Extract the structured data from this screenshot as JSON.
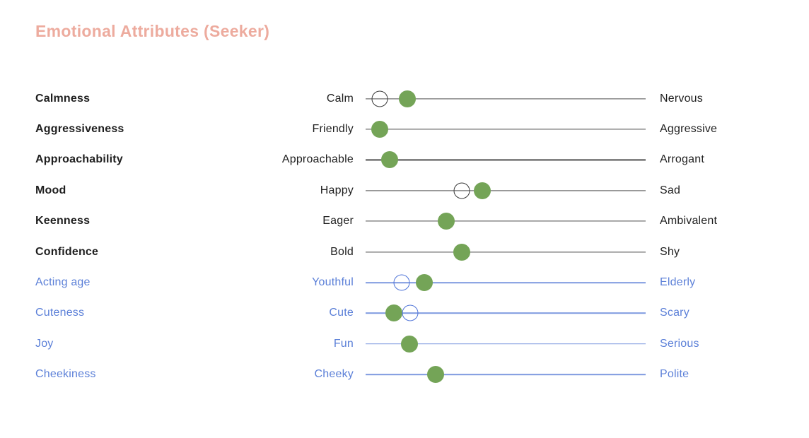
{
  "title": "Emotional Attributes (Seeker)",
  "colors": {
    "title_accent": "#edab9e",
    "dot_green": "#74a457",
    "text_dark": "#1f1f1f",
    "line_dark": "#4d4d4d",
    "circle_dark": "#3a3a3a",
    "text_blue": "#5c80d8",
    "line_blue": "#7e99e0",
    "circle_blue": "#4f74d8"
  },
  "chart_data": {
    "type": "slider-scales",
    "note": "value = green filled dot position, outline = hollow circle position, both as fraction 0-1 of track from left pole to right pole",
    "rows": [
      {
        "attribute": "Calmness",
        "left": "Calm",
        "right": "Nervous",
        "theme": "dark",
        "value": 0.149,
        "outline": 0.051
      },
      {
        "attribute": "Aggressiveness",
        "left": "Friendly",
        "right": "Aggressive",
        "theme": "dark",
        "value": 0.051,
        "outline": null
      },
      {
        "attribute": "Approachability",
        "left": "Approachable",
        "right": "Arrogant",
        "theme": "dark",
        "value": 0.086,
        "outline": null
      },
      {
        "attribute": "Mood",
        "left": "Happy",
        "right": "Sad",
        "theme": "dark",
        "value": 0.417,
        "outline": 0.343
      },
      {
        "attribute": "Keenness",
        "left": "Eager",
        "right": "Ambivalent",
        "theme": "dark",
        "value": 0.288,
        "outline": null
      },
      {
        "attribute": "Confidence",
        "left": "Bold",
        "right": "Shy",
        "theme": "dark",
        "value": 0.343,
        "outline": null
      },
      {
        "attribute": "Acting age",
        "left": "Youthful",
        "right": "Elderly",
        "theme": "blue",
        "value": 0.21,
        "outline": 0.129
      },
      {
        "attribute": "Cuteness",
        "left": "Cute",
        "right": "Scary",
        "theme": "blue",
        "value": 0.101,
        "outline": 0.159
      },
      {
        "attribute": "Joy",
        "left": "Fun",
        "right": "Serious",
        "theme": "blue",
        "value": 0.157,
        "outline": null
      },
      {
        "attribute": "Cheekiness",
        "left": "Cheeky",
        "right": "Polite",
        "theme": "blue",
        "value": 0.25,
        "outline": null
      }
    ]
  }
}
